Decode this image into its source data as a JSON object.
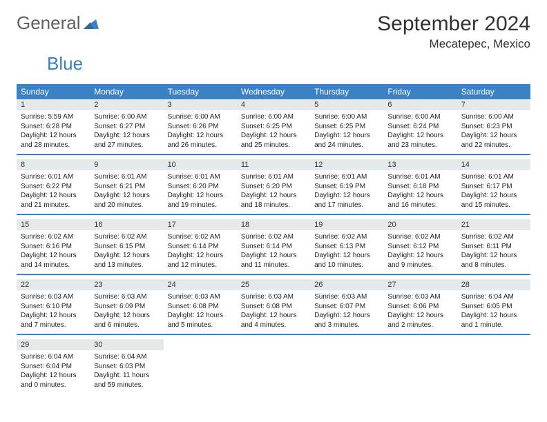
{
  "logo": {
    "text1": "General",
    "text2": "Blue"
  },
  "title": "September 2024",
  "location": "Mecatepec, Mexico",
  "colors": {
    "header_bg": "#3b82c4",
    "daynum_bg": "#e6e9eb",
    "text": "#333333",
    "logo_gray": "#606060",
    "logo_blue": "#3b82c4"
  },
  "weekdays": [
    "Sunday",
    "Monday",
    "Tuesday",
    "Wednesday",
    "Thursday",
    "Friday",
    "Saturday"
  ],
  "weeks": [
    [
      {
        "n": "1",
        "sr": "Sunrise: 5:59 AM",
        "ss": "Sunset: 6:28 PM",
        "d1": "Daylight: 12 hours",
        "d2": "and 28 minutes."
      },
      {
        "n": "2",
        "sr": "Sunrise: 6:00 AM",
        "ss": "Sunset: 6:27 PM",
        "d1": "Daylight: 12 hours",
        "d2": "and 27 minutes."
      },
      {
        "n": "3",
        "sr": "Sunrise: 6:00 AM",
        "ss": "Sunset: 6:26 PM",
        "d1": "Daylight: 12 hours",
        "d2": "and 26 minutes."
      },
      {
        "n": "4",
        "sr": "Sunrise: 6:00 AM",
        "ss": "Sunset: 6:25 PM",
        "d1": "Daylight: 12 hours",
        "d2": "and 25 minutes."
      },
      {
        "n": "5",
        "sr": "Sunrise: 6:00 AM",
        "ss": "Sunset: 6:25 PM",
        "d1": "Daylight: 12 hours",
        "d2": "and 24 minutes."
      },
      {
        "n": "6",
        "sr": "Sunrise: 6:00 AM",
        "ss": "Sunset: 6:24 PM",
        "d1": "Daylight: 12 hours",
        "d2": "and 23 minutes."
      },
      {
        "n": "7",
        "sr": "Sunrise: 6:00 AM",
        "ss": "Sunset: 6:23 PM",
        "d1": "Daylight: 12 hours",
        "d2": "and 22 minutes."
      }
    ],
    [
      {
        "n": "8",
        "sr": "Sunrise: 6:01 AM",
        "ss": "Sunset: 6:22 PM",
        "d1": "Daylight: 12 hours",
        "d2": "and 21 minutes."
      },
      {
        "n": "9",
        "sr": "Sunrise: 6:01 AM",
        "ss": "Sunset: 6:21 PM",
        "d1": "Daylight: 12 hours",
        "d2": "and 20 minutes."
      },
      {
        "n": "10",
        "sr": "Sunrise: 6:01 AM",
        "ss": "Sunset: 6:20 PM",
        "d1": "Daylight: 12 hours",
        "d2": "and 19 minutes."
      },
      {
        "n": "11",
        "sr": "Sunrise: 6:01 AM",
        "ss": "Sunset: 6:20 PM",
        "d1": "Daylight: 12 hours",
        "d2": "and 18 minutes."
      },
      {
        "n": "12",
        "sr": "Sunrise: 6:01 AM",
        "ss": "Sunset: 6:19 PM",
        "d1": "Daylight: 12 hours",
        "d2": "and 17 minutes."
      },
      {
        "n": "13",
        "sr": "Sunrise: 6:01 AM",
        "ss": "Sunset: 6:18 PM",
        "d1": "Daylight: 12 hours",
        "d2": "and 16 minutes."
      },
      {
        "n": "14",
        "sr": "Sunrise: 6:01 AM",
        "ss": "Sunset: 6:17 PM",
        "d1": "Daylight: 12 hours",
        "d2": "and 15 minutes."
      }
    ],
    [
      {
        "n": "15",
        "sr": "Sunrise: 6:02 AM",
        "ss": "Sunset: 6:16 PM",
        "d1": "Daylight: 12 hours",
        "d2": "and 14 minutes."
      },
      {
        "n": "16",
        "sr": "Sunrise: 6:02 AM",
        "ss": "Sunset: 6:15 PM",
        "d1": "Daylight: 12 hours",
        "d2": "and 13 minutes."
      },
      {
        "n": "17",
        "sr": "Sunrise: 6:02 AM",
        "ss": "Sunset: 6:14 PM",
        "d1": "Daylight: 12 hours",
        "d2": "and 12 minutes."
      },
      {
        "n": "18",
        "sr": "Sunrise: 6:02 AM",
        "ss": "Sunset: 6:14 PM",
        "d1": "Daylight: 12 hours",
        "d2": "and 11 minutes."
      },
      {
        "n": "19",
        "sr": "Sunrise: 6:02 AM",
        "ss": "Sunset: 6:13 PM",
        "d1": "Daylight: 12 hours",
        "d2": "and 10 minutes."
      },
      {
        "n": "20",
        "sr": "Sunrise: 6:02 AM",
        "ss": "Sunset: 6:12 PM",
        "d1": "Daylight: 12 hours",
        "d2": "and 9 minutes."
      },
      {
        "n": "21",
        "sr": "Sunrise: 6:02 AM",
        "ss": "Sunset: 6:11 PM",
        "d1": "Daylight: 12 hours",
        "d2": "and 8 minutes."
      }
    ],
    [
      {
        "n": "22",
        "sr": "Sunrise: 6:03 AM",
        "ss": "Sunset: 6:10 PM",
        "d1": "Daylight: 12 hours",
        "d2": "and 7 minutes."
      },
      {
        "n": "23",
        "sr": "Sunrise: 6:03 AM",
        "ss": "Sunset: 6:09 PM",
        "d1": "Daylight: 12 hours",
        "d2": "and 6 minutes."
      },
      {
        "n": "24",
        "sr": "Sunrise: 6:03 AM",
        "ss": "Sunset: 6:08 PM",
        "d1": "Daylight: 12 hours",
        "d2": "and 5 minutes."
      },
      {
        "n": "25",
        "sr": "Sunrise: 6:03 AM",
        "ss": "Sunset: 6:08 PM",
        "d1": "Daylight: 12 hours",
        "d2": "and 4 minutes."
      },
      {
        "n": "26",
        "sr": "Sunrise: 6:03 AM",
        "ss": "Sunset: 6:07 PM",
        "d1": "Daylight: 12 hours",
        "d2": "and 3 minutes."
      },
      {
        "n": "27",
        "sr": "Sunrise: 6:03 AM",
        "ss": "Sunset: 6:06 PM",
        "d1": "Daylight: 12 hours",
        "d2": "and 2 minutes."
      },
      {
        "n": "28",
        "sr": "Sunrise: 6:04 AM",
        "ss": "Sunset: 6:05 PM",
        "d1": "Daylight: 12 hours",
        "d2": "and 1 minute."
      }
    ],
    [
      {
        "n": "29",
        "sr": "Sunrise: 6:04 AM",
        "ss": "Sunset: 6:04 PM",
        "d1": "Daylight: 12 hours",
        "d2": "and 0 minutes."
      },
      {
        "n": "30",
        "sr": "Sunrise: 6:04 AM",
        "ss": "Sunset: 6:03 PM",
        "d1": "Daylight: 11 hours",
        "d2": "and 59 minutes."
      },
      null,
      null,
      null,
      null,
      null
    ]
  ]
}
